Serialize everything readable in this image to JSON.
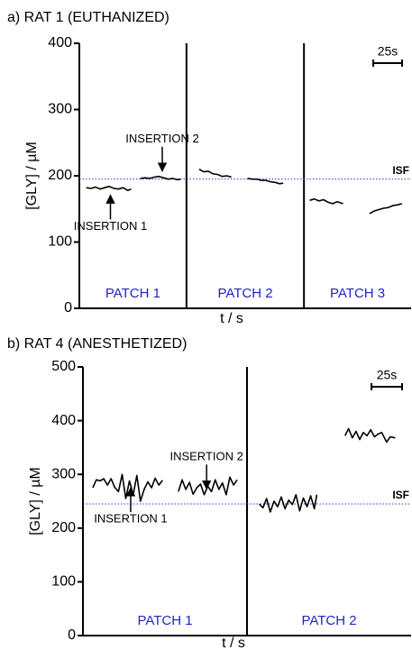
{
  "chart_data": [
    {
      "type": "line",
      "title": "a) RAT 1 (EUTHANIZED)",
      "xlabel": "t / s",
      "ylabel": "[GLY] / µM",
      "xlim": [
        0,
        288
      ],
      "ylim": [
        0,
        400
      ],
      "yticks": [
        0,
        100,
        200,
        300,
        400
      ],
      "dividers": [
        93,
        195
      ],
      "patches": [
        "PATCH 1",
        "PATCH 2",
        "PATCH 3"
      ],
      "patch_color": "#2222cc",
      "reference": {
        "label": "ISF",
        "value": 195,
        "color": "#3333cc"
      },
      "scalebar": {
        "label": "25s",
        "value": 25
      },
      "annotations": [
        {
          "text": "INSERTION 1",
          "x": 27,
          "y": 175,
          "dir": "below"
        },
        {
          "text": "INSERTION 2",
          "x": 72,
          "y": 203,
          "dir": "above"
        }
      ],
      "series": [
        {
          "color": "#000000",
          "x": [
            6,
            10,
            14,
            18,
            22,
            26,
            30,
            34,
            38,
            42,
            45
          ],
          "values": [
            182,
            181,
            183,
            180,
            182,
            184,
            181,
            180,
            182,
            178,
            180
          ]
        },
        {
          "color": "#000000",
          "x": [
            53,
            57,
            61,
            65,
            69,
            73,
            77,
            81,
            85,
            88
          ],
          "values": [
            196,
            197,
            196,
            198,
            199,
            197,
            195,
            196,
            194,
            195
          ]
        },
        {
          "color": "#000000",
          "x": [
            104,
            108,
            112,
            116,
            120,
            124,
            128,
            132
          ],
          "values": [
            210,
            206,
            207,
            203,
            202,
            199,
            200,
            198
          ]
        },
        {
          "color": "#000000",
          "x": [
            146,
            150,
            154,
            158,
            162,
            166,
            170,
            174,
            177
          ],
          "values": [
            196,
            195,
            195,
            193,
            193,
            191,
            190,
            188,
            189
          ]
        },
        {
          "color": "#000000",
          "x": [
            200,
            204,
            208,
            212,
            216,
            220,
            224,
            229
          ],
          "values": [
            163,
            165,
            162,
            164,
            160,
            158,
            161,
            158
          ]
        },
        {
          "color": "#000000",
          "x": [
            252,
            256,
            260,
            264,
            268,
            272,
            276,
            280
          ],
          "values": [
            143,
            147,
            149,
            151,
            152,
            155,
            156,
            158
          ]
        }
      ]
    },
    {
      "type": "line",
      "title": "b) RAT 4 (ANESTHETIZED)",
      "xlabel": "t / s",
      "ylabel": "[GLY] / µM",
      "xlim": [
        0,
        268
      ],
      "ylim": [
        0,
        500
      ],
      "yticks": [
        0,
        100,
        200,
        300,
        400,
        500
      ],
      "dividers": [
        134
      ],
      "patches": [
        "PATCH 1",
        "PATCH 2"
      ],
      "patch_color": "#2222cc",
      "reference": {
        "label": "ISF",
        "value": 245,
        "color": "#3333cc"
      },
      "scalebar": {
        "label": "25s",
        "value": 25
      },
      "annotations": [
        {
          "text": "INSERTION 1",
          "x": 39,
          "y": 280,
          "dir": "below"
        },
        {
          "text": "INSERTION 2",
          "x": 101,
          "y": 268,
          "dir": "above"
        }
      ],
      "series": [
        {
          "color": "#000000",
          "x": [
            8,
            11,
            14,
            17,
            20,
            23,
            26,
            29,
            32,
            35,
            38,
            41,
            44,
            47,
            50,
            53,
            56,
            59,
            62,
            65
          ],
          "values": [
            275,
            290,
            288,
            292,
            280,
            292,
            276,
            268,
            300,
            255,
            288,
            262,
            298,
            250,
            272,
            286,
            275,
            293,
            280,
            289
          ]
        },
        {
          "color": "#000000",
          "x": [
            78,
            81,
            84,
            87,
            90,
            93,
            96,
            99,
            102,
            105,
            108,
            111,
            114,
            117,
            120,
            123,
            126
          ],
          "values": [
            268,
            290,
            272,
            285,
            263,
            275,
            282,
            262,
            278,
            268,
            290,
            272,
            284,
            262,
            295,
            280,
            290
          ]
        },
        {
          "color": "#000000",
          "x": [
            144,
            147,
            150,
            153,
            156,
            159,
            162,
            165,
            168,
            171,
            174,
            177,
            180,
            183,
            186,
            189,
            191
          ],
          "values": [
            245,
            238,
            255,
            230,
            250,
            240,
            258,
            236,
            252,
            244,
            262,
            232,
            256,
            240,
            260,
            236,
            262
          ]
        },
        {
          "color": "#000000",
          "x": [
            214,
            217,
            220,
            223,
            226,
            229,
            232,
            235,
            238,
            241,
            244,
            248,
            251,
            255
          ],
          "values": [
            372,
            385,
            368,
            380,
            365,
            378,
            372,
            383,
            370,
            375,
            378,
            360,
            370,
            368
          ]
        }
      ]
    }
  ]
}
